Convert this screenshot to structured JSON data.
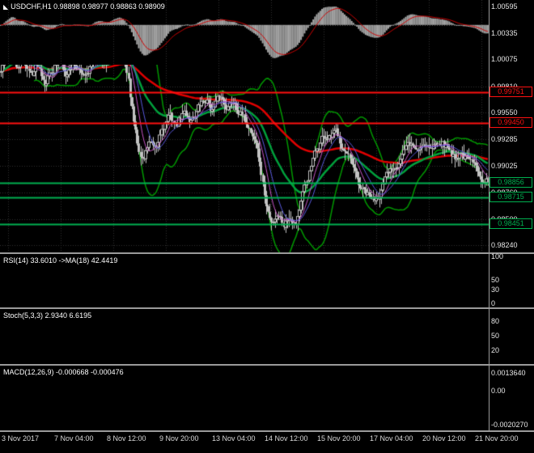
{
  "window": {
    "bg": "#000000",
    "grid": "#303030",
    "separator": "#9a9a9a",
    "axis_text": "#e6e6e6",
    "marker": "◣"
  },
  "chart_data": [
    {
      "type": "candlestick",
      "panel": "main",
      "title": "USDCHF,H1 0.98898 0.98977 0.98863 0.98909",
      "symbol": "USDCHF",
      "timeframe": "H1",
      "ohlc": {
        "open": 0.98898,
        "high": 0.98977,
        "low": 0.98863,
        "close": 0.98909
      },
      "ylim": [
        0.9817,
        1.0066
      ],
      "y_ticks": [
        {
          "v": 1.00595,
          "label": "1.00595"
        },
        {
          "v": 1.00335,
          "label": "1.00335"
        },
        {
          "v": 1.00075,
          "label": "1.00075"
        },
        {
          "v": 0.9981,
          "label": "0.99810"
        },
        {
          "v": 0.9955,
          "label": "0.99550"
        },
        {
          "v": 0.99285,
          "label": "0.99285"
        },
        {
          "v": 0.99025,
          "label": "0.99025"
        },
        {
          "v": 0.9876,
          "label": "0.98760"
        },
        {
          "v": 0.985,
          "label": "0.98500"
        },
        {
          "v": 0.9824,
          "label": "0.98240"
        }
      ],
      "x_tick_labels": [
        "3 Nov 2017",
        "7 Nov 04:00",
        "8 Nov 12:00",
        "9 Nov 20:00",
        "13 Nov 04:00",
        "14 Nov 12:00",
        "15 Nov 20:00",
        "17 Nov 04:00",
        "20 Nov 12:00",
        "21 Nov 20:00"
      ],
      "n_bars": 280,
      "price_waypoints": [
        [
          0.0,
          0.9995
        ],
        [
          0.01,
          1.0015
        ],
        [
          0.022,
          1.0028
        ],
        [
          0.032,
          0.9998
        ],
        [
          0.045,
          1.001
        ],
        [
          0.06,
          0.9992
        ],
        [
          0.075,
          1.0003
        ],
        [
          0.09,
          0.9988
        ],
        [
          0.105,
          0.9998
        ],
        [
          0.12,
          1.0008
        ],
        [
          0.135,
          0.9995
        ],
        [
          0.15,
          1.0005
        ],
        [
          0.165,
          0.9992
        ],
        [
          0.18,
          1.0
        ],
        [
          0.195,
          1.0012
        ],
        [
          0.21,
          1.0002
        ],
        [
          0.225,
          1.0018
        ],
        [
          0.24,
          1.0025
        ],
        [
          0.252,
          1.001
        ],
        [
          0.262,
          0.9985
        ],
        [
          0.272,
          0.9945
        ],
        [
          0.282,
          0.9915
        ],
        [
          0.292,
          0.9908
        ],
        [
          0.305,
          0.9928
        ],
        [
          0.318,
          0.9912
        ],
        [
          0.33,
          0.994
        ],
        [
          0.345,
          0.9952
        ],
        [
          0.36,
          0.9942
        ],
        [
          0.375,
          0.9955
        ],
        [
          0.39,
          0.9948
        ],
        [
          0.405,
          0.996
        ],
        [
          0.42,
          0.9968
        ],
        [
          0.435,
          0.9958
        ],
        [
          0.45,
          0.997
        ],
        [
          0.465,
          0.9962
        ],
        [
          0.48,
          0.9968
        ],
        [
          0.495,
          0.995
        ],
        [
          0.51,
          0.994
        ],
        [
          0.525,
          0.9925
        ],
        [
          0.535,
          0.9892
        ],
        [
          0.545,
          0.9862
        ],
        [
          0.555,
          0.9845
        ],
        [
          0.568,
          0.9858
        ],
        [
          0.58,
          0.9846
        ],
        [
          0.592,
          0.9855
        ],
        [
          0.605,
          0.9848
        ],
        [
          0.618,
          0.987
        ],
        [
          0.632,
          0.9892
        ],
        [
          0.648,
          0.9916
        ],
        [
          0.662,
          0.9932
        ],
        [
          0.676,
          0.9928
        ],
        [
          0.69,
          0.9935
        ],
        [
          0.705,
          0.9918
        ],
        [
          0.72,
          0.99
        ],
        [
          0.735,
          0.9882
        ],
        [
          0.75,
          0.9873
        ],
        [
          0.765,
          0.9868
        ],
        [
          0.78,
          0.988
        ],
        [
          0.795,
          0.9893
        ],
        [
          0.81,
          0.9905
        ],
        [
          0.825,
          0.9916
        ],
        [
          0.84,
          0.9924
        ],
        [
          0.855,
          0.9918
        ],
        [
          0.87,
          0.9928
        ],
        [
          0.885,
          0.992
        ],
        [
          0.9,
          0.993
        ],
        [
          0.915,
          0.9922
        ],
        [
          0.93,
          0.9912
        ],
        [
          0.945,
          0.9916
        ],
        [
          0.96,
          0.9906
        ],
        [
          0.975,
          0.99
        ],
        [
          0.988,
          0.9894
        ],
        [
          1.0,
          0.98909
        ]
      ],
      "levels": [
        {
          "value": 0.99751,
          "label": "0.99751",
          "color": "#ff1111",
          "width": 2
        },
        {
          "value": 0.9945,
          "label": "0.99450",
          "color": "#ff1111",
          "width": 2
        },
        {
          "value": 0.98856,
          "label": "0.98856",
          "color": "#00b050",
          "width": 2
        },
        {
          "value": 0.98715,
          "label": "0.98715",
          "color": "#00b050",
          "width": 2
        },
        {
          "value": 0.98451,
          "label": "0.98451",
          "color": "#00b050",
          "width": 2
        }
      ],
      "overlays": {
        "bollinger": {
          "period": 20,
          "dev": 2,
          "color": "#009900",
          "width": 1.5
        },
        "ma_thin_fast": {
          "kind": "sma",
          "period": 8,
          "color": "#c855c8",
          "width": 1
        },
        "ma_thin_mid": {
          "kind": "sma",
          "period": 13,
          "color": "#5a5ae0",
          "width": 1
        },
        "ma_green_thick": {
          "kind": "ema",
          "period": 34,
          "color": "#00a03c",
          "width": 2.5
        },
        "ma_red_thick": {
          "kind": "ema",
          "period": 100,
          "color": "#e00000",
          "width": 2.5
        }
      },
      "candle_color": "#c2c2c2"
    },
    {
      "type": "line",
      "panel": "rsi",
      "title": "RSI(14) 33.6010 ->MA(18) 42.4419",
      "params": {
        "period": 14,
        "ma_period": 18
      },
      "current": {
        "rsi": 33.601,
        "ma": 42.4419
      },
      "ylim": [
        0,
        100
      ],
      "y_ticks": [
        {
          "v": 100,
          "label": "100"
        },
        {
          "v": 50,
          "label": "50"
        },
        {
          "v": 30,
          "label": "30"
        },
        {
          "v": 0,
          "label": "0"
        }
      ],
      "level_values": [
        50,
        30
      ],
      "colors": {
        "rsi": "#d00000",
        "ma": "#3a3acc"
      }
    },
    {
      "type": "line",
      "panel": "stoch",
      "title": "Stoch(5,3,3) 2.9340 6.6195",
      "params": {
        "k": 5,
        "slowing": 3,
        "d": 3
      },
      "current": {
        "k": 2.934,
        "d": 6.6195
      },
      "ylim": [
        0,
        100
      ],
      "y_ticks": [
        {
          "v": 80,
          "label": "80"
        },
        {
          "v": 50,
          "label": "50"
        },
        {
          "v": 20,
          "label": "20"
        }
      ],
      "level_values": [
        80,
        20
      ],
      "colors": {
        "k": "#00b3b3",
        "d": "#d00000"
      }
    },
    {
      "type": "line",
      "panel": "macd",
      "title": "MACD(12,26,9) -0.000668 -0.000476",
      "params": {
        "fast": 12,
        "slow": 26,
        "signal": 9
      },
      "current": {
        "macd": -0.000668,
        "signal": -0.000476
      },
      "y_tick_labels": [
        "0.0013640",
        "0.00",
        "-0.0020270"
      ],
      "colors": {
        "hist": "#a6a6a6",
        "signal": "#d00000"
      }
    }
  ]
}
